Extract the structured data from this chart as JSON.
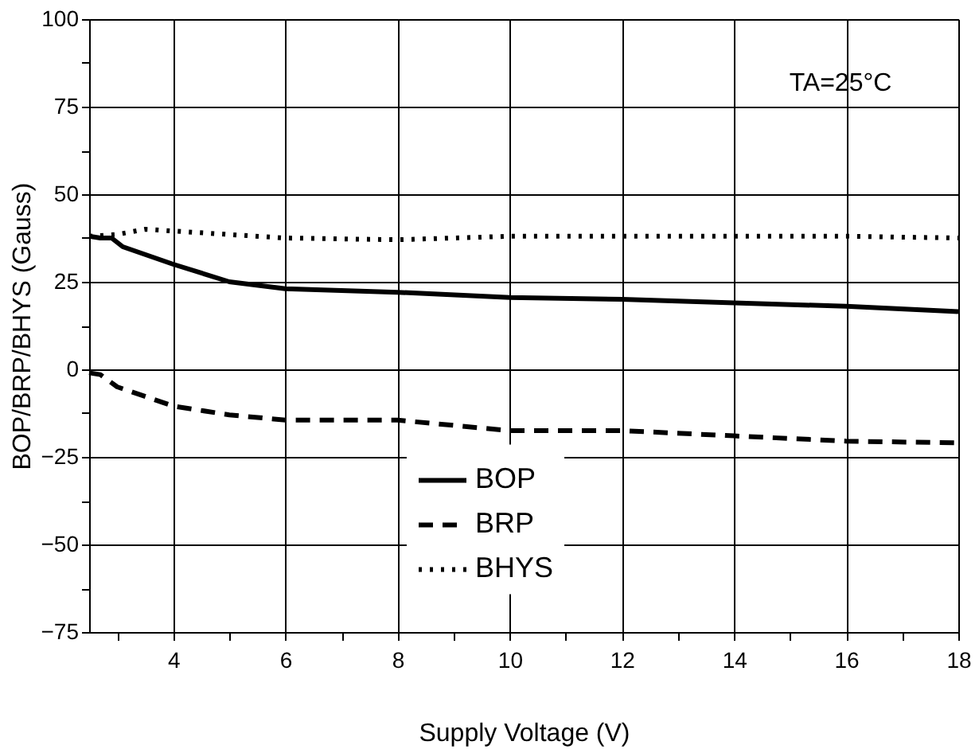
{
  "chart_data": {
    "type": "line",
    "xlabel": "Supply Voltage (V)",
    "ylabel": "BOP/BRP/BHYS (Gauss)",
    "annotations": [
      "TA=25°C"
    ],
    "xlim": [
      2.5,
      18
    ],
    "xticks": [
      {
        "value": 3,
        "label": null
      },
      4,
      {
        "value": 5,
        "label": null
      },
      6,
      {
        "value": 7,
        "label": null
      },
      8,
      {
        "value": 9,
        "label": null
      },
      10,
      {
        "value": 11,
        "label": null
      },
      12,
      {
        "value": 13,
        "label": null
      },
      14,
      {
        "value": 15,
        "label": null
      },
      16,
      {
        "value": 17,
        "label": null
      },
      18
    ],
    "ylim": [
      -75,
      100
    ],
    "yticks": [
      -75,
      {
        "value": -62.5,
        "label": null
      },
      -50,
      {
        "value": -37.5,
        "label": null
      },
      -25,
      {
        "value": -12.5,
        "label": null
      },
      0,
      {
        "value": 12.5,
        "label": null
      },
      25,
      {
        "value": 37.5,
        "label": null
      },
      50,
      {
        "value": 62.5,
        "label": null
      },
      75,
      {
        "value": 87.5,
        "label": null
      },
      100
    ],
    "grid": true,
    "legend": "bottom",
    "marker": "none",
    "series": [
      {
        "name": "BOP",
        "color": "#000000",
        "line_style": "solid",
        "x": [
          2.5,
          2.7,
          2.9,
          3.1,
          4,
          5,
          6,
          8,
          10,
          12,
          14,
          16,
          18
        ],
        "values": [
          38,
          37.5,
          37.5,
          35,
          30,
          25,
          23,
          22,
          20.5,
          20,
          19,
          18,
          16.5
        ]
      },
      {
        "name": "BRP",
        "color": "#000000",
        "line_style": "dashed",
        "x": [
          2.5,
          2.7,
          3,
          4,
          5,
          6,
          8,
          10,
          12,
          14,
          16,
          18
        ],
        "values": [
          -1,
          -1.5,
          -5,
          -10.5,
          -13,
          -14.5,
          -14.5,
          -17.5,
          -17.5,
          -19,
          -20.5,
          -21
        ]
      },
      {
        "name": "BHYS",
        "color": "#000000",
        "line_style": "dotted",
        "x": [
          2.5,
          3,
          3.5,
          4,
          5,
          6,
          8,
          10,
          12,
          14,
          16,
          18
        ],
        "values": [
          38,
          38.5,
          40,
          39.5,
          38.5,
          37.5,
          37,
          38,
          38,
          38,
          38,
          37.5
        ]
      }
    ]
  }
}
